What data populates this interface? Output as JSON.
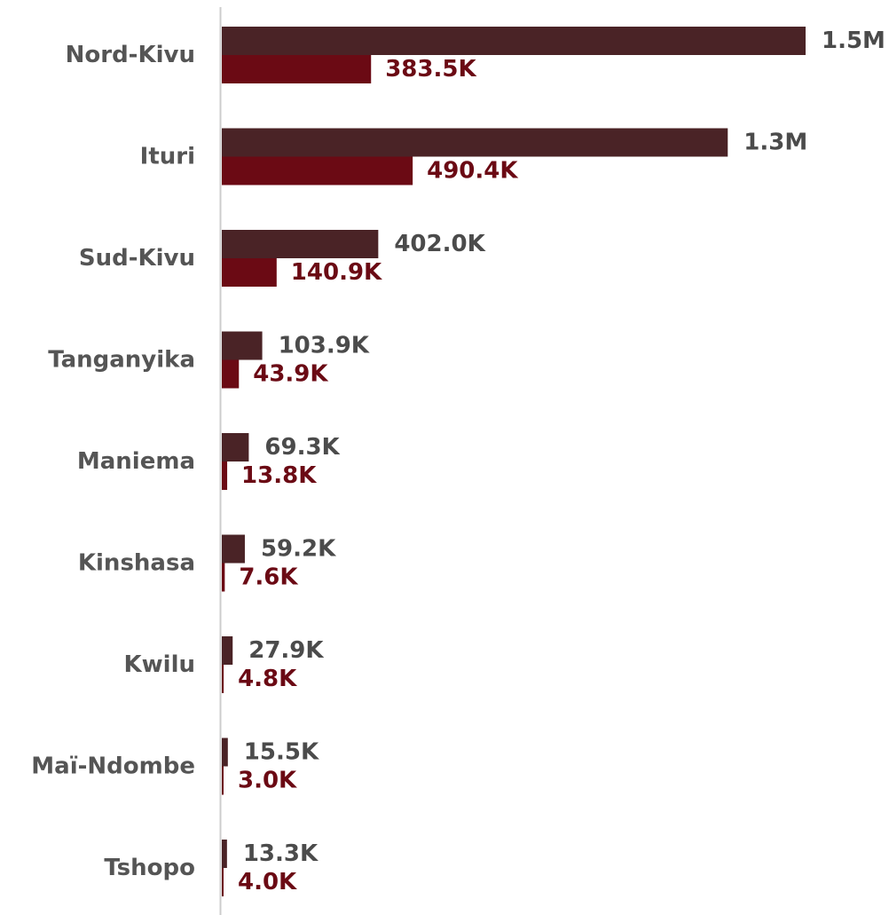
{
  "colors": {
    "series_1": "#4a2326",
    "series_2": "#6b0a14",
    "category_text": "#555555",
    "series_1_label": "#4b4b4b",
    "series_2_label": "#6b0a14",
    "axis": "#cccccc"
  },
  "chart_data": {
    "type": "bar",
    "orientation": "horizontal",
    "categories": [
      "Nord-Kivu",
      "Ituri",
      "Sud-Kivu",
      "Tanganyika",
      "Maniema",
      "Kinshasa",
      "Kwilu",
      "Maï-Ndombe",
      "Tshopo"
    ],
    "series": [
      {
        "values": [
          1500000,
          1300000,
          402000,
          103900,
          69300,
          59200,
          27900,
          15500,
          13300
        ],
        "labels": [
          "1.5M",
          "1.3M",
          "402.0K",
          "103.9K",
          "69.3K",
          "59.2K",
          "27.9K",
          "15.5K",
          "13.3K"
        ]
      },
      {
        "values": [
          383500,
          490400,
          140900,
          43900,
          13800,
          7600,
          4800,
          3000,
          4000
        ],
        "labels": [
          "383.5K",
          "490.4K",
          "140.9K",
          "43.9K",
          "13.8K",
          "7.6K",
          "4.8K",
          "3.0K",
          "4.0K"
        ]
      }
    ],
    "grid": false,
    "legend": "none"
  }
}
